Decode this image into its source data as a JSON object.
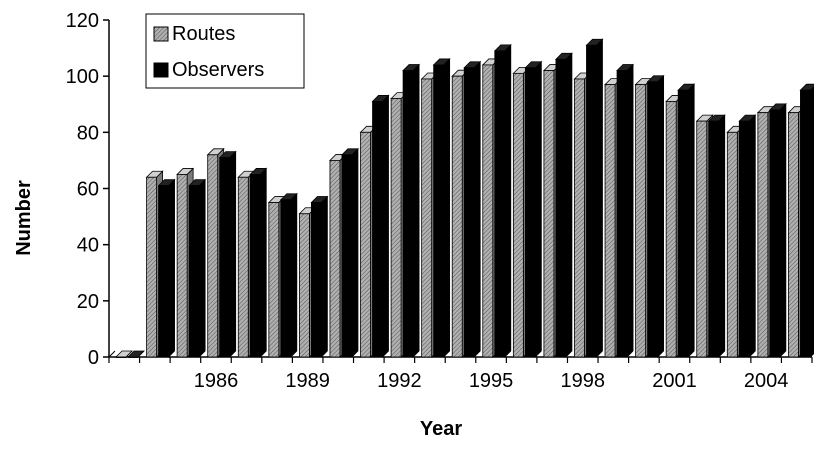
{
  "chart_data": {
    "type": "bar",
    "title": "",
    "xlabel": "Year",
    "ylabel": "Number",
    "ylim": [
      0,
      120
    ],
    "yticks": [
      0,
      20,
      40,
      60,
      80,
      100,
      120
    ],
    "grid": false,
    "legend_position": "top-left",
    "categories": [
      "1983",
      "1984",
      "1985",
      "1986",
      "1987",
      "1988",
      "1989",
      "1990",
      "1991",
      "1992",
      "1993",
      "1994",
      "1995",
      "1996",
      "1997",
      "1998",
      "1999",
      "2000",
      "2001",
      "2002",
      "2003",
      "2004",
      "2005"
    ],
    "x_tick_labels": [
      {
        "category": "1986",
        "label": "1986"
      },
      {
        "category": "1989",
        "label": "1989"
      },
      {
        "category": "1992",
        "label": "1992"
      },
      {
        "category": "1995",
        "label": "1995"
      },
      {
        "category": "1998",
        "label": "1998"
      },
      {
        "category": "2001",
        "label": "2001"
      },
      {
        "category": "2004",
        "label": "2004"
      }
    ],
    "series": [
      {
        "name": "Routes",
        "color": "#a6a6a6",
        "pattern": "hatched",
        "values": [
          0,
          64,
          65,
          72,
          64,
          55,
          51,
          70,
          80,
          92,
          99,
          100,
          104,
          101,
          102,
          99,
          97,
          97,
          91,
          84,
          80,
          87,
          87
        ]
      },
      {
        "name": "Observers",
        "color": "#000000",
        "pattern": "solid",
        "values": [
          0,
          61,
          61,
          71,
          65,
          56,
          55,
          72,
          91,
          102,
          104,
          103,
          109,
          103,
          106,
          111,
          102,
          98,
          95,
          84,
          84,
          88,
          95
        ]
      }
    ]
  }
}
